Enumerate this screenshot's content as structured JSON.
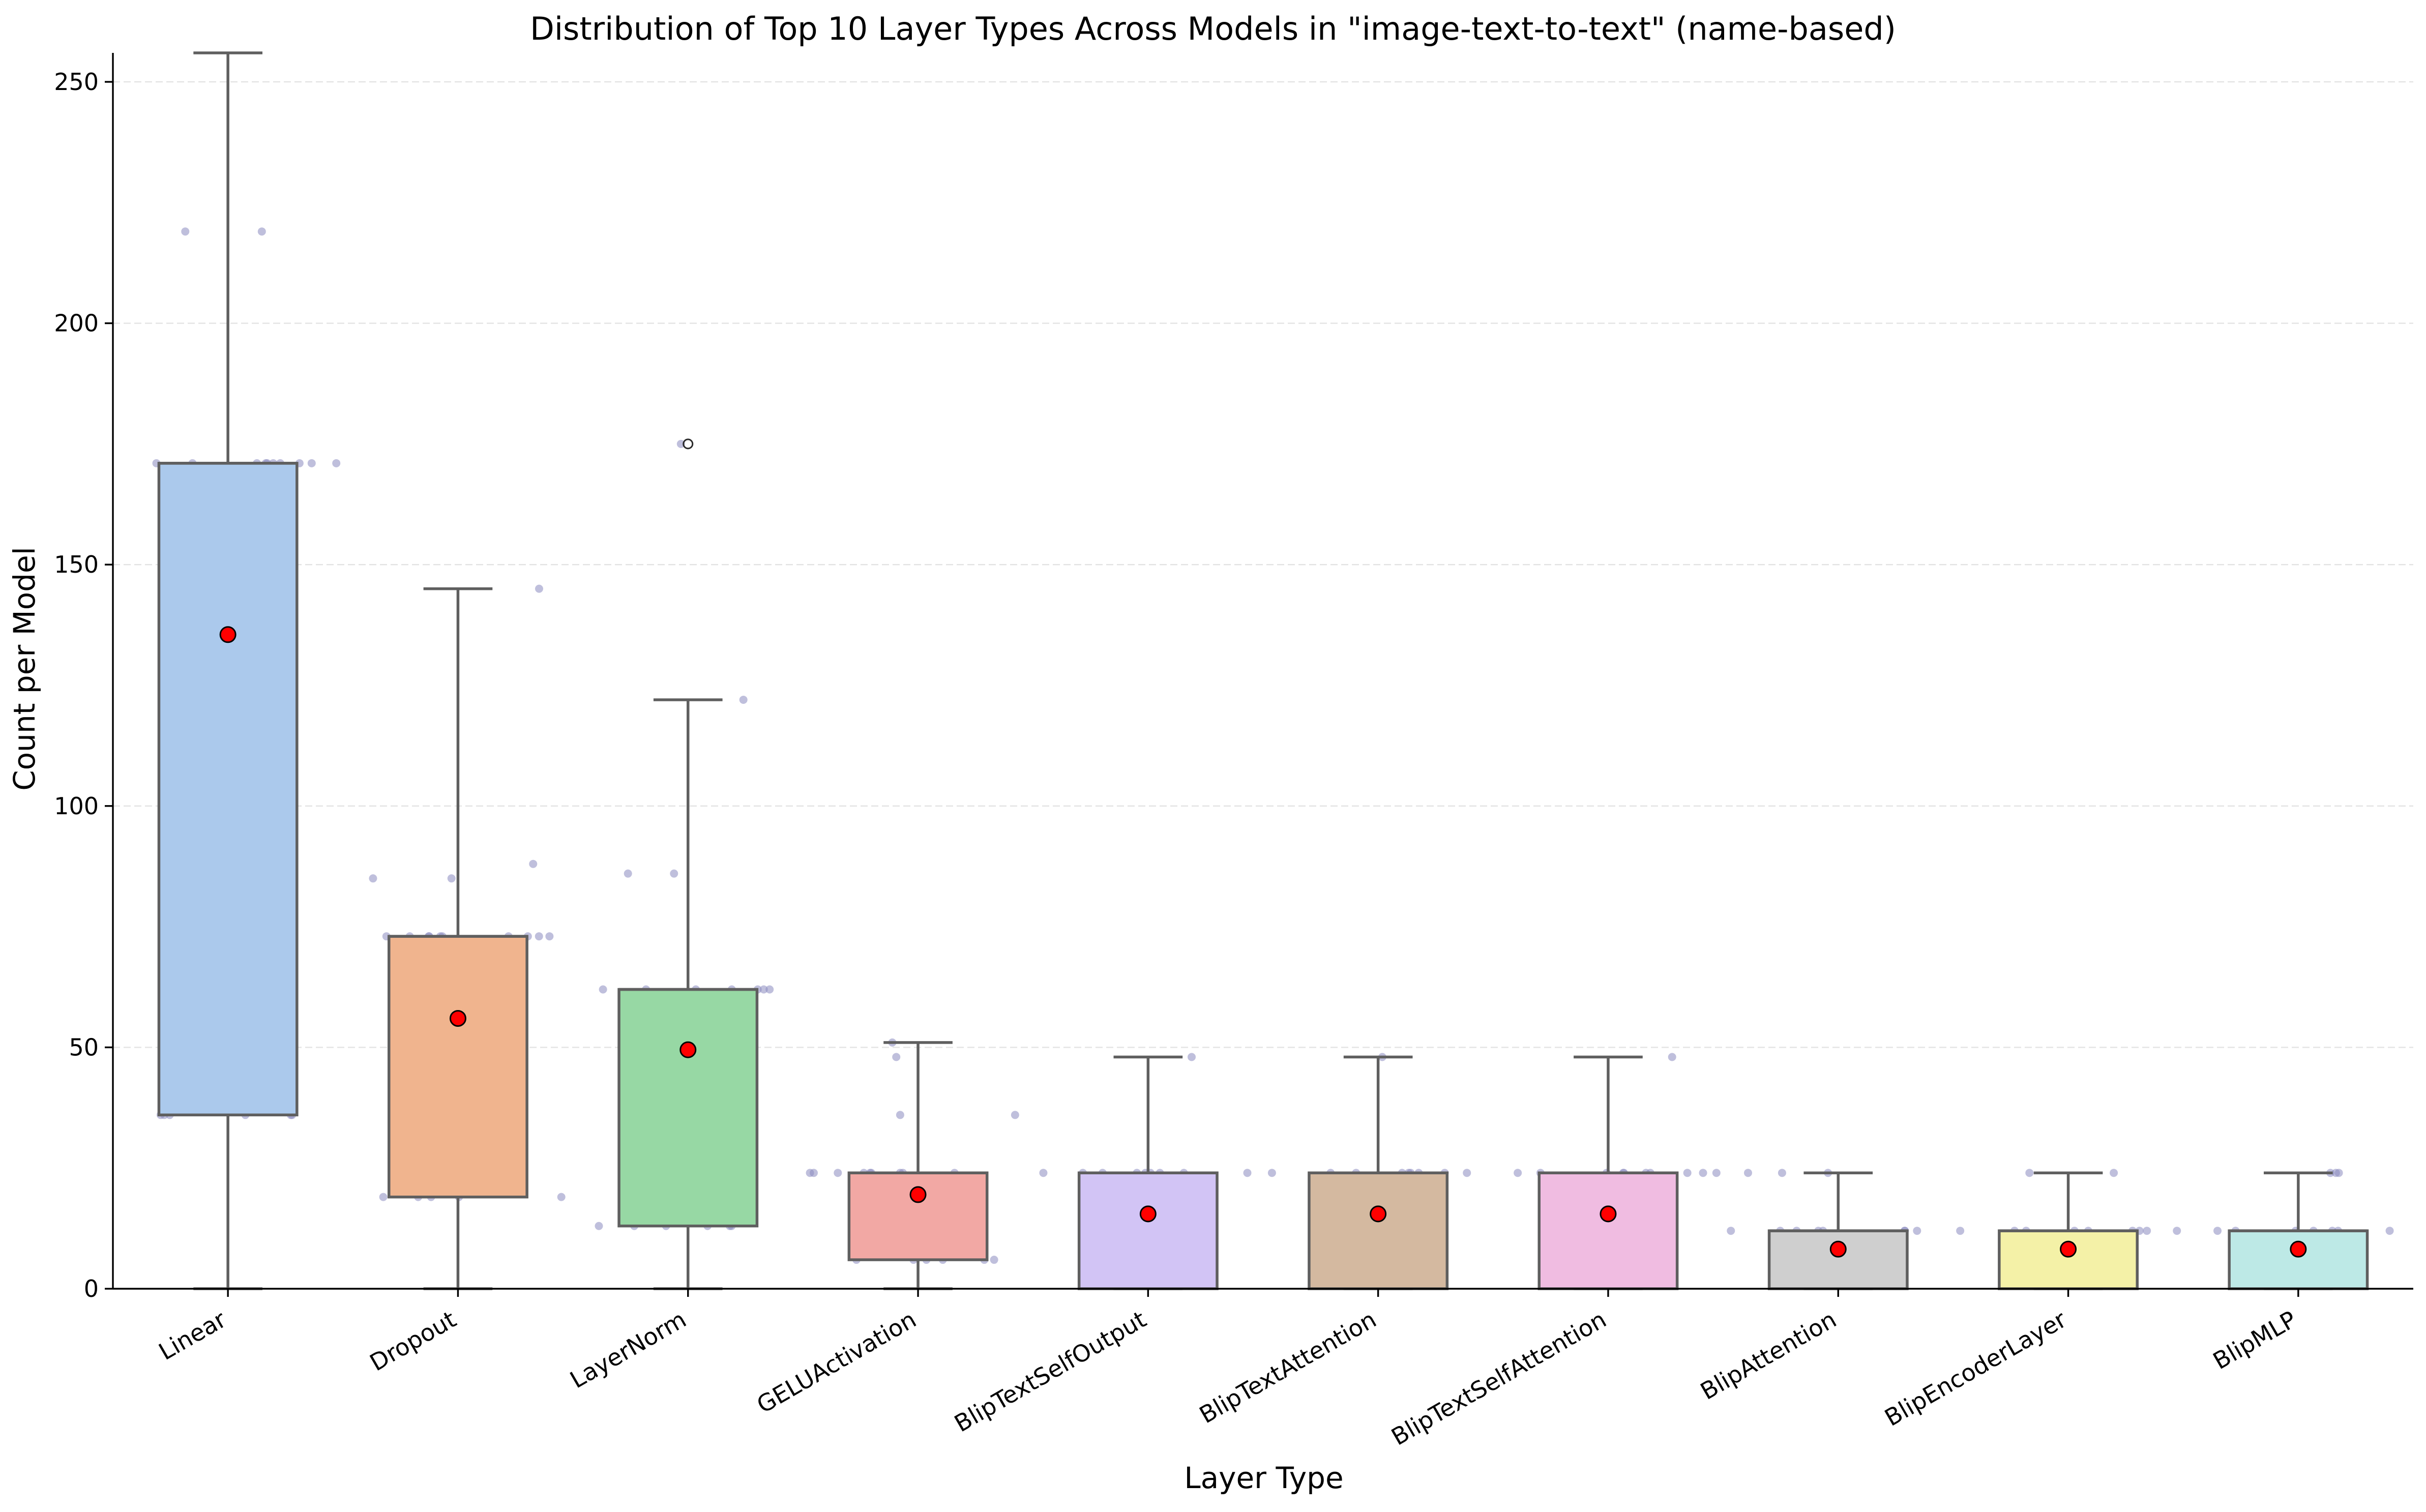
{
  "chart_data": {
    "type": "box",
    "title": "Distribution of Top 10 Layer Types Across Models in \"image-text-to-text\" (name-based)",
    "xlabel": "Layer Type",
    "ylabel": "Count per Model",
    "ylim": [
      0,
      256
    ],
    "yticks": [
      0,
      50,
      100,
      150,
      200,
      250
    ],
    "grid": "horizontal dashed",
    "categories": [
      "Linear",
      "Dropout",
      "LayerNorm",
      "GELUActivation",
      "BlipTextSelfOutput",
      "BlipTextAttention",
      "BlipTextSelfAttention",
      "BlipAttention",
      "BlipEncoderLayer",
      "BlipMLP"
    ],
    "colors": [
      "#abc9ec",
      "#f0b48e",
      "#97d8a4",
      "#f2a8a4",
      "#d2c4f5",
      "#d4b9a0",
      "#f0bce1",
      "#cfcfcf",
      "#f4f1a7",
      "#bde9e6"
    ],
    "mean_marker_color": "#ff0000",
    "point_color": "#8a8ac0",
    "boxes": [
      {
        "name": "Linear",
        "min": 0,
        "q1": 36,
        "median": 171,
        "q3": 171,
        "max": 256,
        "mean": 135.5,
        "outliers": [],
        "points": [
          219,
          219,
          171,
          171,
          171,
          171,
          171,
          171,
          171,
          171,
          171,
          171,
          36,
          36,
          36,
          36,
          36,
          36
        ]
      },
      {
        "name": "Dropout",
        "min": 0,
        "q1": 19,
        "median": 73,
        "q3": 73,
        "max": 145,
        "mean": 56,
        "outliers": [],
        "points": [
          145,
          88,
          85,
          85,
          73,
          73,
          73,
          73,
          73,
          73,
          73,
          73,
          73,
          73,
          19,
          19,
          19,
          19,
          19
        ]
      },
      {
        "name": "LayerNorm",
        "min": 0,
        "q1": 13,
        "median": 62,
        "q3": 62,
        "max": 122,
        "mean": 49.5,
        "outliers": [
          175
        ],
        "points": [
          175,
          122,
          86,
          86,
          62,
          62,
          62,
          62,
          62,
          62,
          62,
          13,
          13,
          13,
          13,
          13,
          13
        ]
      },
      {
        "name": "GELUActivation",
        "min": 0,
        "q1": 6,
        "median": 24,
        "q3": 24,
        "max": 51,
        "mean": 19.5,
        "outliers": [],
        "points": [
          51,
          48,
          36,
          36,
          24,
          24,
          24,
          24,
          24,
          24,
          24,
          24,
          24,
          6,
          6,
          6,
          6,
          6,
          6
        ]
      },
      {
        "name": "BlipTextSelfOutput",
        "min": 0,
        "q1": 0,
        "median": 24,
        "q3": 24,
        "max": 48,
        "mean": 15.5,
        "outliers": [],
        "points": [
          48,
          24,
          24,
          24,
          24,
          24,
          24,
          24,
          24,
          24
        ]
      },
      {
        "name": "BlipTextAttention",
        "min": 0,
        "q1": 0,
        "median": 24,
        "q3": 24,
        "max": 48,
        "mean": 15.5,
        "outliers": [],
        "points": [
          48,
          24,
          24,
          24,
          24,
          24,
          24,
          24,
          24,
          24
        ]
      },
      {
        "name": "BlipTextSelfAttention",
        "min": 0,
        "q1": 0,
        "median": 24,
        "q3": 24,
        "max": 48,
        "mean": 15.5,
        "outliers": [],
        "points": [
          48,
          24,
          24,
          24,
          24,
          24,
          24,
          24,
          24,
          24,
          24
        ]
      },
      {
        "name": "BlipAttention",
        "min": 0,
        "q1": 0,
        "median": 12,
        "q3": 12,
        "max": 24,
        "mean": 8.2,
        "outliers": [],
        "points": [
          24,
          24,
          24,
          12,
          12,
          12,
          12,
          12,
          12,
          12,
          12
        ]
      },
      {
        "name": "BlipEncoderLayer",
        "min": 0,
        "q1": 0,
        "median": 12,
        "q3": 12,
        "max": 24,
        "mean": 8.2,
        "outliers": [],
        "points": [
          24,
          24,
          12,
          12,
          12,
          12,
          12,
          12,
          12,
          12,
          12
        ]
      },
      {
        "name": "BlipMLP",
        "min": 0,
        "q1": 0,
        "median": 12,
        "q3": 12,
        "max": 24,
        "mean": 8.2,
        "outliers": [],
        "points": [
          24,
          24,
          24,
          12,
          12,
          12,
          12,
          12,
          12,
          12,
          5
        ]
      }
    ]
  }
}
